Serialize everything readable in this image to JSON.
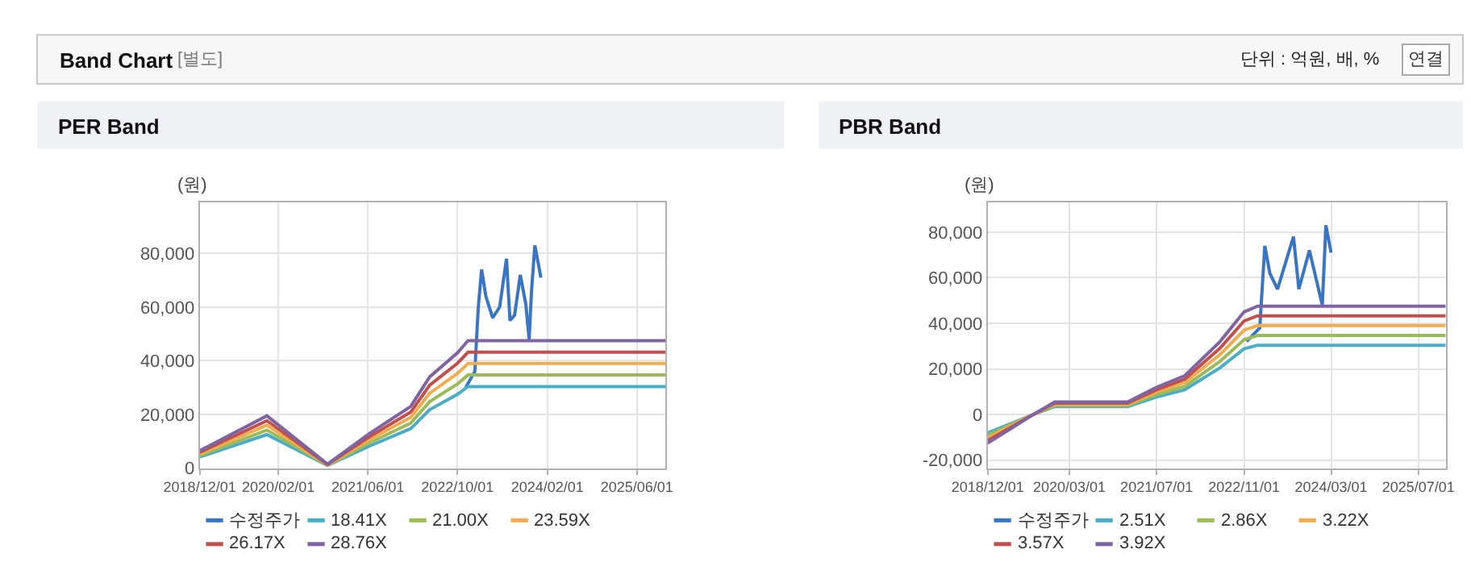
{
  "chart_data": [
    {
      "type": "line",
      "title": "PER Band",
      "ylabel": "(원)",
      "grid": true,
      "legend": "bottom",
      "annotations": [
        "Band Chart",
        "[별도]",
        "단위 : 억원, 배, %",
        "연결"
      ],
      "x": [
        "2018-12-01",
        "2019-12-01",
        "2020-10-25",
        "2021-06-12",
        "2022-01-20",
        "2022-05-03",
        "2022-10-01",
        "2022-11-27",
        "2025-11-04"
      ],
      "xlim": [
        "2018-12-01",
        "2025-11-04"
      ],
      "xticks": [
        {
          "value": "2018-12-01",
          "label": "2018/12/01"
        },
        {
          "value": "2020-02-01",
          "label": "2020/02/01"
        },
        {
          "value": "2021-06-01",
          "label": "2021/06/01"
        },
        {
          "value": "2022-10-01",
          "label": "2022/10/01"
        },
        {
          "value": "2024-02-01",
          "label": "2024/02/01"
        },
        {
          "value": "2025-06-01",
          "label": "2025/06/01"
        }
      ],
      "ylim": [
        0,
        99000
      ],
      "yticks": [
        0,
        {
          "value": 20000,
          "label": "20,000"
        },
        {
          "value": 40000,
          "label": "40,000"
        },
        {
          "value": 60000,
          "label": "60,000"
        },
        {
          "value": 80000,
          "label": "80,000"
        }
      ],
      "series": [
        {
          "name": "수정주가",
          "color": "#3a75c4",
          "x": [
            "2022-11-14",
            "2023-01-03",
            "2023-01-22",
            "2023-02-09",
            "2023-03-04",
            "2023-04-10",
            "2023-05-18",
            "2023-06-24",
            "2023-07-13",
            "2023-08-07",
            "2023-09-07",
            "2023-10-07",
            "2023-10-25",
            "2023-11-07",
            "2023-11-25",
            "2023-12-28"
          ],
          "values": [
            30000,
            36000,
            60000,
            74000,
            64000,
            56000,
            60000,
            78000,
            55000,
            57000,
            72000,
            61000,
            48000,
            66000,
            83000,
            71000
          ]
        },
        {
          "name": "18.41X",
          "color": "#4bacc6",
          "values": [
            4200,
            12500,
            1000,
            8300,
            14700,
            21800,
            27500,
            30400,
            30400
          ]
        },
        {
          "name": "21.00X",
          "color": "#9bbb59",
          "values": [
            4700,
            14200,
            1100,
            9500,
            16800,
            24800,
            31400,
            34700,
            34700
          ]
        },
        {
          "name": "23.59X",
          "color": "#f0ad4e",
          "values": [
            5300,
            16000,
            1200,
            10700,
            18900,
            27900,
            35300,
            39000,
            39000
          ]
        },
        {
          "name": "26.17X",
          "color": "#c0504d",
          "values": [
            5900,
            17700,
            1400,
            11800,
            20900,
            30900,
            39100,
            43200,
            43200
          ]
        },
        {
          "name": "28.76X",
          "color": "#8064a2",
          "values": [
            6500,
            19500,
            1500,
            13000,
            23000,
            34000,
            43000,
            47500,
            47500
          ]
        }
      ]
    },
    {
      "type": "line",
      "title": "PBR Band",
      "ylabel": "(원)",
      "grid": true,
      "legend": "bottom",
      "x": [
        "2018-12-01",
        "2019-08-12",
        "2019-12-10",
        "2021-01-20",
        "2021-07-01",
        "2021-12-05",
        "2022-06-20",
        "2022-11-01",
        "2023-01-15",
        "2025-12-01"
      ],
      "xlim": [
        "2018-12-01",
        "2025-12-01"
      ],
      "xticks": [
        {
          "value": "2018-12-01",
          "label": "2018/12/01"
        },
        {
          "value": "2020-03-01",
          "label": "2020/03/01"
        },
        {
          "value": "2021-07-01",
          "label": "2021/07/01"
        },
        {
          "value": "2022-11-01",
          "label": "2022/11/01"
        },
        {
          "value": "2024-03-01",
          "label": "2024/03/01"
        },
        {
          "value": "2025-07-01",
          "label": "2025/07/01"
        }
      ],
      "ylim": [
        -23500,
        93000
      ],
      "yticks": [
        {
          "value": -20000,
          "label": "-20,000"
        },
        0,
        {
          "value": 20000,
          "label": "20,000"
        },
        {
          "value": 40000,
          "label": "40,000"
        },
        {
          "value": 60000,
          "label": "60,000"
        },
        {
          "value": 80000,
          "label": "80,000"
        }
      ],
      "series": [
        {
          "name": "수정주가",
          "color": "#3a75c4",
          "x": [
            "2022-11-15",
            "2023-01-28",
            "2023-02-25",
            "2023-03-25",
            "2023-05-07",
            "2023-08-04",
            "2023-09-03",
            "2023-11-01",
            "2024-01-12",
            "2024-02-01",
            "2024-03-01"
          ],
          "values": [
            32000,
            38000,
            74000,
            62000,
            55000,
            78000,
            55000,
            72000,
            48000,
            83000,
            71000
          ]
        },
        {
          "name": "2.51X",
          "color": "#4bacc6",
          "values": [
            -8000,
            0,
            3500,
            3500,
            7700,
            10900,
            20500,
            28800,
            30400,
            30400
          ]
        },
        {
          "name": "2.86X",
          "color": "#9bbb59",
          "values": [
            -9100,
            0,
            4000,
            4000,
            8800,
            12400,
            23300,
            32800,
            34700,
            34700
          ]
        },
        {
          "name": "3.22X",
          "color": "#f0ad4e",
          "values": [
            -10300,
            0,
            4500,
            4500,
            9900,
            14000,
            26300,
            37000,
            39000,
            39000
          ]
        },
        {
          "name": "3.57X",
          "color": "#c0504d",
          "values": [
            -11400,
            0,
            5000,
            5000,
            10900,
            15500,
            29100,
            41000,
            43300,
            43300
          ]
        },
        {
          "name": "3.92X",
          "color": "#8064a2",
          "values": [
            -12500,
            0,
            5500,
            5500,
            12000,
            17000,
            32000,
            45000,
            47500,
            47500
          ]
        }
      ]
    }
  ]
}
